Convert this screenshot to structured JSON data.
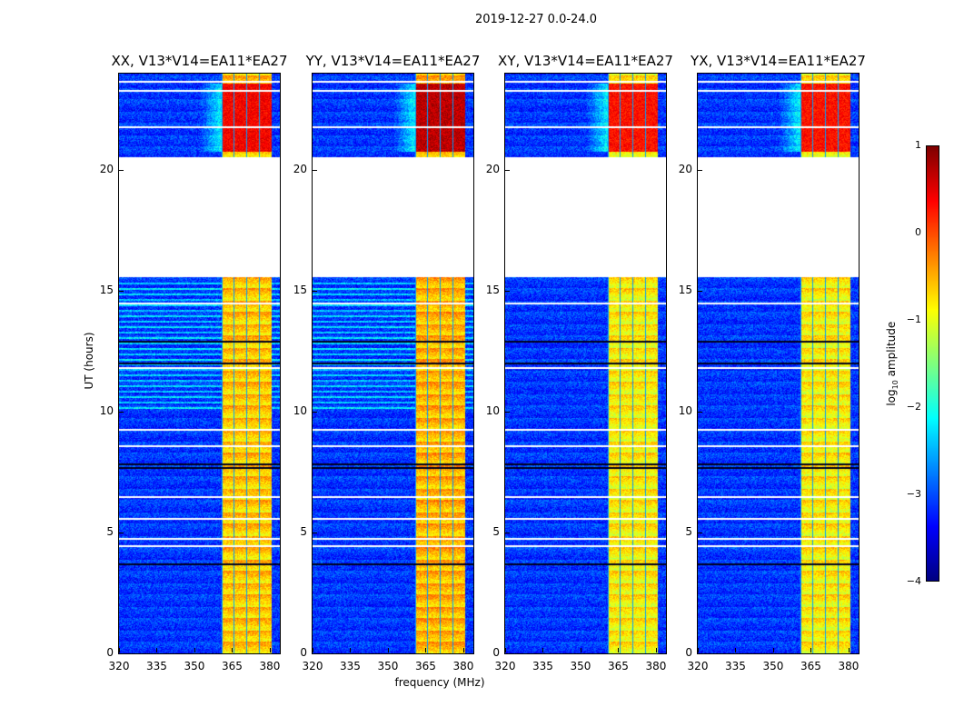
{
  "suptitle": "2019-12-27 0.0-24.0",
  "chart_data": {
    "type": "heatmap",
    "title": "2019-12-27 0.0-24.0",
    "xlabel": "frequency (MHz)",
    "ylabel": "UT (hours)",
    "xlim": [
      320,
      384
    ],
    "ylim": [
      0,
      24
    ],
    "xticks": [
      "320",
      "335",
      "350",
      "365",
      "380"
    ],
    "yticks": [
      "0",
      "5",
      "10",
      "15",
      "20"
    ],
    "panels": [
      {
        "title": "XX, V13*V14=EA11*EA27",
        "band_level": -0.6,
        "flare_level": 0.4
      },
      {
        "title": "YY, V13*V14=EA11*EA27",
        "band_level": -0.5,
        "flare_level": 0.7
      },
      {
        "title": "XY, V13*V14=EA11*EA27",
        "band_level": -0.8,
        "flare_level": 0.3
      },
      {
        "title": "YX, V13*V14=EA11*EA27",
        "band_level": -0.8,
        "flare_level": 0.3
      }
    ],
    "bright_band_mhz": [
      360.5,
      380.5
    ],
    "data_gap_hours": [
      15.6,
      20.5
    ],
    "colorbar": {
      "label": "log10 amplitude",
      "label_main": "log",
      "label_sub": "10",
      "label_rest": " amplitude",
      "range": [
        -4,
        1
      ],
      "ticks": [
        "1",
        "0",
        "−1",
        "−2",
        "−3",
        "−4"
      ],
      "colormap": "jet"
    }
  }
}
